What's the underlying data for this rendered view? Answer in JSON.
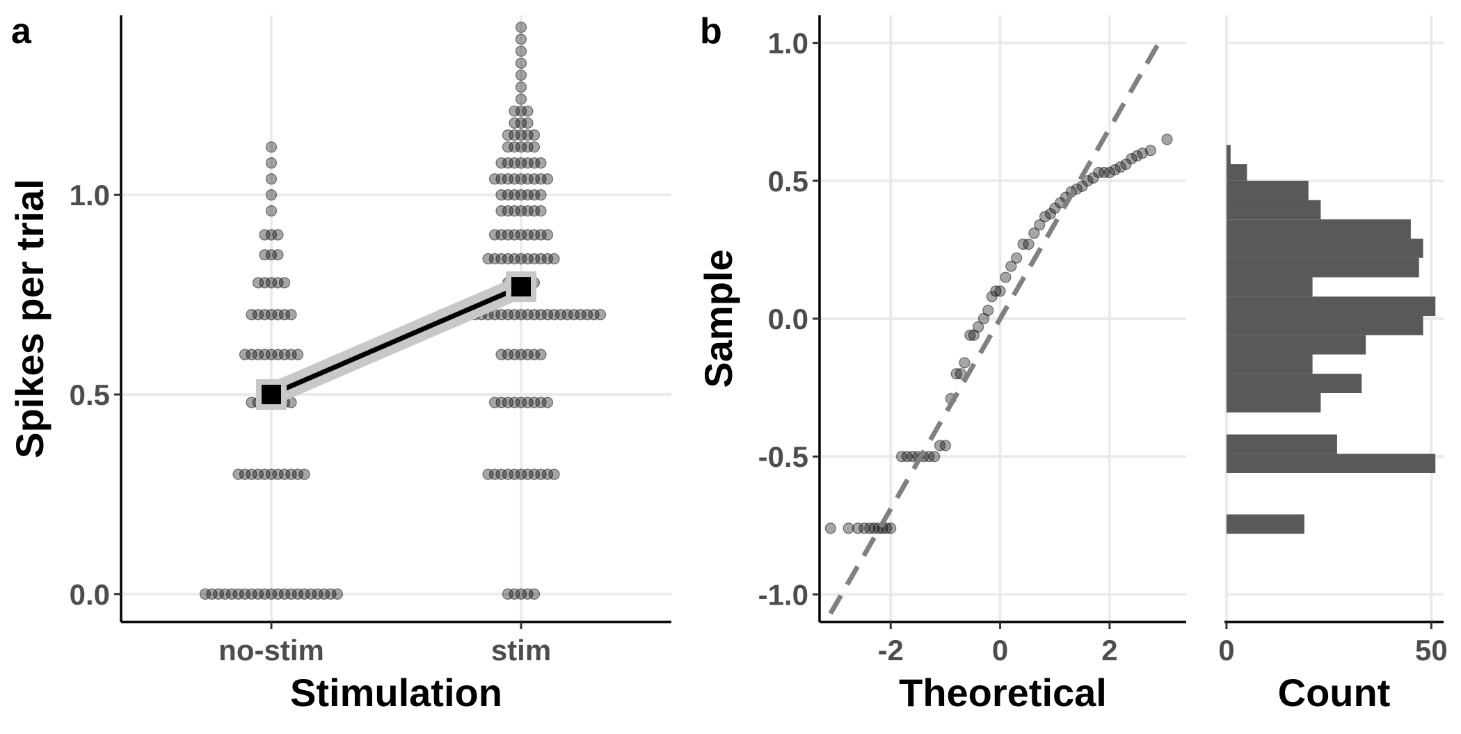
{
  "figure": {
    "panel_a_label": "a",
    "panel_b_label": "b"
  },
  "chart_data": [
    {
      "type": "scatter",
      "panel": "a",
      "xlabel": "Stimulation",
      "ylabel": "Spikes per trial",
      "categories": [
        "no-stim",
        "stim"
      ],
      "y_ticks": [
        "0.0",
        "0.5",
        "1.0"
      ],
      "ylim": [
        -0.07,
        1.45
      ],
      "grid": true,
      "distribution": {
        "no-stim": [
          {
            "y": 0.0,
            "n": 21
          },
          {
            "y": 0.3,
            "n": 11
          },
          {
            "y": 0.48,
            "n": 7
          },
          {
            "y": 0.6,
            "n": 9
          },
          {
            "y": 0.7,
            "n": 7
          },
          {
            "y": 0.78,
            "n": 5
          },
          {
            "y": 0.85,
            "n": 3
          },
          {
            "y": 0.9,
            "n": 3
          },
          {
            "y": 0.96,
            "n": 1
          },
          {
            "y": 1.0,
            "n": 1
          },
          {
            "y": 1.04,
            "n": 1
          },
          {
            "y": 1.08,
            "n": 1
          },
          {
            "y": 1.12,
            "n": 1
          }
        ],
        "stim": [
          {
            "y": 0.0,
            "n": 5
          },
          {
            "y": 0.3,
            "n": 11
          },
          {
            "y": 0.48,
            "n": 9
          },
          {
            "y": 0.6,
            "n": 7
          },
          {
            "y": 0.7,
            "n": 25
          },
          {
            "y": 0.78,
            "n": 5
          },
          {
            "y": 0.84,
            "n": 11
          },
          {
            "y": 0.9,
            "n": 9
          },
          {
            "y": 0.96,
            "n": 7
          },
          {
            "y": 1.0,
            "n": 7
          },
          {
            "y": 1.04,
            "n": 9
          },
          {
            "y": 1.08,
            "n": 7
          },
          {
            "y": 1.12,
            "n": 5
          },
          {
            "y": 1.15,
            "n": 5
          },
          {
            "y": 1.18,
            "n": 3
          },
          {
            "y": 1.21,
            "n": 3
          },
          {
            "y": 1.24,
            "n": 1
          },
          {
            "y": 1.27,
            "n": 1
          },
          {
            "y": 1.3,
            "n": 1
          },
          {
            "y": 1.33,
            "n": 1
          },
          {
            "y": 1.36,
            "n": 1
          },
          {
            "y": 1.39,
            "n": 1
          },
          {
            "y": 1.42,
            "n": 1
          }
        ]
      },
      "means": [
        {
          "category": "no-stim",
          "value": 0.5
        },
        {
          "category": "stim",
          "value": 0.77
        }
      ],
      "point_color": "#000000",
      "mean_band_color": "#c8c8c8"
    },
    {
      "type": "scatter",
      "panel": "b-left",
      "xlabel": "Theoretical",
      "ylabel": "Sample",
      "x_ticks": [
        "-2",
        "0",
        "2"
      ],
      "y_ticks": [
        "-1.0",
        "-0.5",
        "0.0",
        "0.5",
        "1.0"
      ],
      "xlim": [
        -3.3,
        3.4
      ],
      "ylim": [
        -1.1,
        1.1
      ],
      "grid": true,
      "reference_line": {
        "intercept": 0.0,
        "slope": 0.345,
        "style": "dashed",
        "color": "#808080"
      },
      "x": [
        -3.1,
        -2.77,
        -2.6,
        -2.48,
        -2.38,
        -2.3,
        -2.22,
        -2.15,
        -2.08,
        -2.0,
        -1.8,
        -1.7,
        -1.6,
        -1.5,
        -1.4,
        -1.3,
        -1.2,
        -1.1,
        -1.0,
        -0.9,
        -0.8,
        -0.72,
        -0.65,
        -0.55,
        -0.48,
        -0.4,
        -0.3,
        -0.22,
        -0.15,
        -0.08,
        0.0,
        0.1,
        0.2,
        0.3,
        0.42,
        0.52,
        0.62,
        0.72,
        0.82,
        0.92,
        1.0,
        1.1,
        1.2,
        1.3,
        1.4,
        1.5,
        1.6,
        1.7,
        1.8,
        1.9,
        2.0,
        2.1,
        2.2,
        2.3,
        2.4,
        2.5,
        2.6,
        2.75,
        3.05
      ],
      "y": [
        -0.76,
        -0.76,
        -0.76,
        -0.76,
        -0.76,
        -0.76,
        -0.76,
        -0.76,
        -0.76,
        -0.76,
        -0.5,
        -0.5,
        -0.5,
        -0.5,
        -0.5,
        -0.5,
        -0.5,
        -0.46,
        -0.46,
        -0.29,
        -0.2,
        -0.2,
        -0.16,
        -0.06,
        -0.06,
        -0.03,
        0.0,
        0.03,
        0.08,
        0.1,
        0.1,
        0.15,
        0.19,
        0.22,
        0.27,
        0.27,
        0.31,
        0.34,
        0.37,
        0.38,
        0.4,
        0.42,
        0.44,
        0.46,
        0.47,
        0.48,
        0.5,
        0.51,
        0.53,
        0.53,
        0.53,
        0.54,
        0.55,
        0.56,
        0.58,
        0.59,
        0.6,
        0.61,
        0.65
      ]
    },
    {
      "type": "bar",
      "panel": "b-right",
      "orientation": "horizontal",
      "xlabel": "Count",
      "x_ticks": [
        "0",
        "50"
      ],
      "xlim": [
        -0.5,
        53
      ],
      "bar_color": "#595959",
      "bins": [
        {
          "y_low": -0.78,
          "y_high": -0.71,
          "count": 19
        },
        {
          "y_low": -0.56,
          "y_high": -0.49,
          "count": 51
        },
        {
          "y_low": -0.49,
          "y_high": -0.42,
          "count": 27
        },
        {
          "y_low": -0.34,
          "y_high": -0.27,
          "count": 23
        },
        {
          "y_low": -0.27,
          "y_high": -0.2,
          "count": 33
        },
        {
          "y_low": -0.2,
          "y_high": -0.13,
          "count": 21
        },
        {
          "y_low": -0.13,
          "y_high": -0.06,
          "count": 34
        },
        {
          "y_low": -0.06,
          "y_high": 0.01,
          "count": 48
        },
        {
          "y_low": 0.01,
          "y_high": 0.08,
          "count": 51
        },
        {
          "y_low": 0.08,
          "y_high": 0.15,
          "count": 21
        },
        {
          "y_low": 0.15,
          "y_high": 0.22,
          "count": 47
        },
        {
          "y_low": 0.22,
          "y_high": 0.29,
          "count": 48
        },
        {
          "y_low": 0.29,
          "y_high": 0.36,
          "count": 45
        },
        {
          "y_low": 0.36,
          "y_high": 0.43,
          "count": 23
        },
        {
          "y_low": 0.43,
          "y_high": 0.5,
          "count": 20
        },
        {
          "y_low": 0.5,
          "y_high": 0.56,
          "count": 5
        },
        {
          "y_low": 0.56,
          "y_high": 0.63,
          "count": 1
        }
      ]
    }
  ]
}
